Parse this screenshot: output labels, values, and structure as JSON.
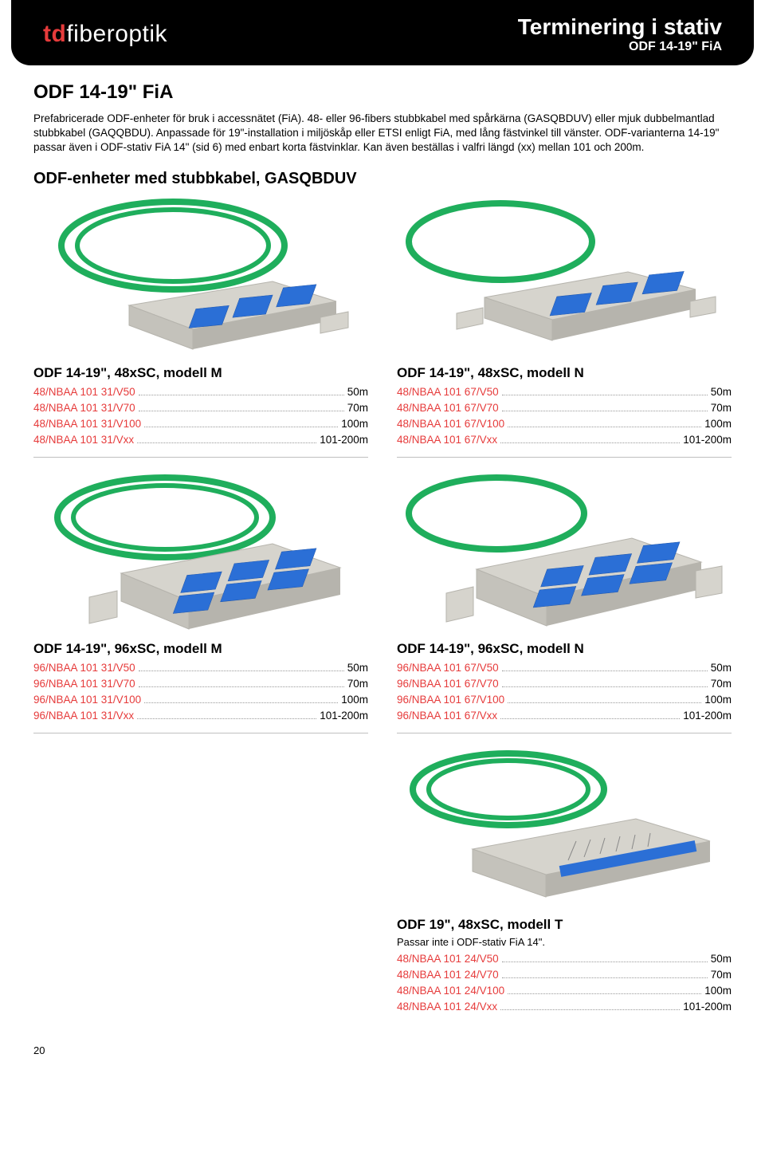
{
  "colors": {
    "accent": "#e63b3b",
    "black": "#000000",
    "white": "#ffffff",
    "rule": "#bfbfbf",
    "cable_green": "#1fae5c",
    "unit_body": "#d6d4cd",
    "unit_shadow": "#b6b4ad",
    "connector_blue": "#2b6fd6",
    "connector_blue_dark": "#1e54a8"
  },
  "logo": {
    "part1": "td",
    "part2": "fiber",
    "part3": "optik"
  },
  "header": {
    "title": "Terminering i stativ",
    "subtitle": "ODF 14-19\" FiA"
  },
  "page_title": "ODF 14-19\" FiA",
  "intro": "Prefabricerade ODF-enheter för bruk i accessnätet (FiA). 48- eller 96-fibers stubbkabel med spårkärna (GASQBDUV) eller mjuk dubbelmantlad stubbkabel (GAQQBDU). Anpassade för 19\"-installation i miljöskåp eller ETSI enligt FiA, med lång fästvinkel till vänster. ODF-varianterna 14-19\" passar även i ODF-stativ FiA 14\" (sid 6) med enbart korta fästvinklar. Kan även beställas i valfri längd (xx) mellan 101 och 200m.",
  "section_title": "ODF-enheter med stubbkabel, GASQBDUV",
  "products": {
    "m48": {
      "title": "ODF 14-19\", 48xSC, modell M",
      "rows": [
        {
          "code": "48/NBAA 101 31/V50",
          "val": "50m"
        },
        {
          "code": "48/NBAA 101 31/V70",
          "val": "70m"
        },
        {
          "code": "48/NBAA 101 31/V100",
          "val": "100m"
        },
        {
          "code": "48/NBAA 101 31/Vxx",
          "val": "101-200m"
        }
      ]
    },
    "n48": {
      "title": "ODF 14-19\", 48xSC, modell N",
      "rows": [
        {
          "code": "48/NBAA 101 67/V50",
          "val": "50m"
        },
        {
          "code": "48/NBAA 101 67/V70",
          "val": "70m"
        },
        {
          "code": "48/NBAA 101 67/V100",
          "val": "100m"
        },
        {
          "code": "48/NBAA 101 67/Vxx",
          "val": "101-200m"
        }
      ]
    },
    "m96": {
      "title": "ODF 14-19\", 96xSC, modell M",
      "rows": [
        {
          "code": "96/NBAA 101 31/V50",
          "val": "50m"
        },
        {
          "code": "96/NBAA 101 31/V70",
          "val": "70m"
        },
        {
          "code": "96/NBAA 101 31/V100",
          "val": "100m"
        },
        {
          "code": "96/NBAA 101 31/Vxx",
          "val": "101-200m"
        }
      ]
    },
    "n96": {
      "title": "ODF 14-19\", 96xSC, modell N",
      "rows": [
        {
          "code": "96/NBAA 101 67/V50",
          "val": "50m"
        },
        {
          "code": "96/NBAA 101 67/V70",
          "val": "70m"
        },
        {
          "code": "96/NBAA 101 67/V100",
          "val": "100m"
        },
        {
          "code": "96/NBAA 101 67/Vxx",
          "val": "101-200m"
        }
      ]
    },
    "t48": {
      "title": "ODF 19\", 48xSC, modell T",
      "sub": "Passar inte i ODF-stativ FiA 14\".",
      "rows": [
        {
          "code": "48/NBAA 101 24/V50",
          "val": "50m"
        },
        {
          "code": "48/NBAA 101 24/V70",
          "val": "70m"
        },
        {
          "code": "48/NBAA 101 24/V100",
          "val": "100m"
        },
        {
          "code": "48/NBAA 101 24/Vxx",
          "val": "101-200m"
        }
      ]
    }
  },
  "page_number": "20"
}
